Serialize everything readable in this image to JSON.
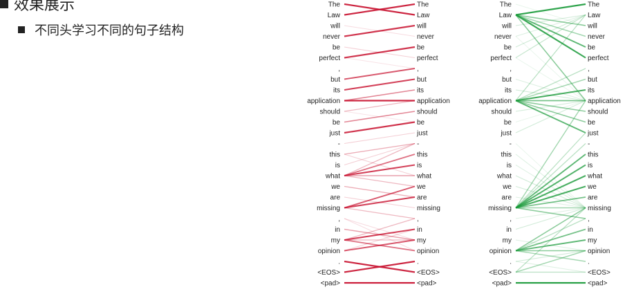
{
  "slide": {
    "title": "效果展示",
    "bullet": "不同头学习不同的句子结构"
  },
  "tokens": [
    "The",
    "Law",
    "will",
    "never",
    "be",
    "perfect",
    ",",
    "but",
    "its",
    "application",
    "should",
    "be",
    "just",
    "-",
    "this",
    "is",
    "what",
    "we",
    "are",
    "missing",
    ",",
    "in",
    "my",
    "opinion",
    ".",
    "<EOS>",
    "<pad>"
  ],
  "colors": {
    "head_red": "#c8102e",
    "head_green": "#1a9a3a"
  },
  "heads": [
    {
      "name": "red-head",
      "links": [
        [
          0,
          1,
          0.9
        ],
        [
          1,
          0,
          0.9
        ],
        [
          2,
          3,
          0.15
        ],
        [
          3,
          2,
          0.85
        ],
        [
          4,
          5,
          0.2
        ],
        [
          5,
          4,
          0.85
        ],
        [
          7,
          6,
          0.7
        ],
        [
          8,
          7,
          0.8
        ],
        [
          9,
          8,
          0.5
        ],
        [
          9,
          9,
          0.9
        ],
        [
          10,
          9,
          0.3
        ],
        [
          11,
          10,
          0.5
        ],
        [
          12,
          11,
          0.85
        ],
        [
          13,
          12,
          0.2
        ],
        [
          14,
          13,
          0.35
        ],
        [
          14,
          16,
          0.2
        ],
        [
          15,
          13,
          0.2
        ],
        [
          16,
          13,
          0.3
        ],
        [
          16,
          14,
          0.6
        ],
        [
          16,
          15,
          0.8
        ],
        [
          16,
          17,
          0.3
        ],
        [
          16,
          16,
          0.4
        ],
        [
          17,
          18,
          0.35
        ],
        [
          18,
          19,
          0.2
        ],
        [
          19,
          17,
          0.7
        ],
        [
          19,
          18,
          0.8
        ],
        [
          19,
          20,
          0.3
        ],
        [
          20,
          22,
          0.15
        ],
        [
          21,
          22,
          0.4
        ],
        [
          22,
          20,
          0.3
        ],
        [
          22,
          21,
          0.8
        ],
        [
          22,
          22,
          0.3
        ],
        [
          22,
          23,
          0.6
        ],
        [
          23,
          22,
          0.7
        ],
        [
          24,
          25,
          0.9
        ],
        [
          25,
          24,
          0.9
        ],
        [
          26,
          26,
          0.95
        ],
        [
          5,
          6,
          0.12
        ],
        [
          10,
          11,
          0.12
        ],
        [
          23,
          21,
          0.2
        ],
        [
          20,
          23,
          0.15
        ]
      ]
    },
    {
      "name": "green-head",
      "links": [
        [
          1,
          0,
          0.9
        ],
        [
          1,
          2,
          0.5
        ],
        [
          1,
          3,
          0.4
        ],
        [
          1,
          4,
          0.7
        ],
        [
          1,
          5,
          0.85
        ],
        [
          1,
          9,
          0.5
        ],
        [
          0,
          2,
          0.1
        ],
        [
          2,
          1,
          0.2
        ],
        [
          3,
          1,
          0.15
        ],
        [
          4,
          1,
          0.2
        ],
        [
          5,
          1,
          0.25
        ],
        [
          9,
          6,
          0.3
        ],
        [
          9,
          7,
          0.4
        ],
        [
          9,
          8,
          0.8
        ],
        [
          9,
          9,
          0.6
        ],
        [
          9,
          10,
          0.5
        ],
        [
          9,
          11,
          0.5
        ],
        [
          9,
          12,
          0.7
        ],
        [
          9,
          1,
          0.3
        ],
        [
          10,
          9,
          0.2
        ],
        [
          12,
          9,
          0.2
        ],
        [
          19,
          13,
          0.3
        ],
        [
          19,
          14,
          0.7
        ],
        [
          19,
          15,
          0.75
        ],
        [
          19,
          16,
          0.8
        ],
        [
          19,
          17,
          0.8
        ],
        [
          19,
          18,
          0.6
        ],
        [
          19,
          19,
          0.4
        ],
        [
          19,
          20,
          0.5
        ],
        [
          19,
          9,
          0.4
        ],
        [
          19,
          12,
          0.3
        ],
        [
          23,
          19,
          0.5
        ],
        [
          23,
          21,
          0.6
        ],
        [
          23,
          22,
          0.7
        ],
        [
          23,
          23,
          0.5
        ],
        [
          23,
          24,
          0.4
        ],
        [
          23,
          20,
          0.3
        ],
        [
          25,
          19,
          0.3
        ],
        [
          25,
          23,
          0.4
        ],
        [
          24,
          23,
          0.2
        ],
        [
          26,
          26,
          0.95
        ],
        [
          14,
          19,
          0.15
        ],
        [
          16,
          19,
          0.2
        ],
        [
          17,
          19,
          0.2
        ],
        [
          21,
          19,
          0.2
        ],
        [
          3,
          9,
          0.1
        ],
        [
          5,
          9,
          0.1
        ],
        [
          7,
          9,
          0.15
        ],
        [
          8,
          9,
          0.2
        ],
        [
          11,
          9,
          0.1
        ],
        [
          13,
          19,
          0.1
        ],
        [
          15,
          19,
          0.15
        ],
        [
          18,
          19,
          0.15
        ],
        [
          20,
          19,
          0.15
        ],
        [
          22,
          23,
          0.15
        ],
        [
          24,
          25,
          0.15
        ],
        [
          25,
          25,
          0.3
        ]
      ]
    }
  ]
}
